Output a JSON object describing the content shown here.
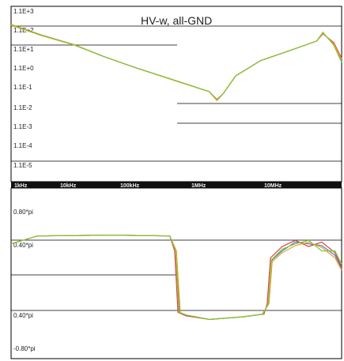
{
  "chart_data": [
    {
      "type": "line",
      "title": "HV-w, all-GND",
      "y_scale": "log",
      "ytick_labels": [
        "1.1E+3",
        "1.1E+2",
        "1.1E+1",
        "1.1E+0",
        "1.1E-1",
        "1.1E-2",
        "1.1E-3",
        "1.1E-4",
        "1.1E-5"
      ],
      "xtick_labels": [
        "1kHz",
        "10kHz",
        "100kHz",
        "1MHz",
        "10MHz"
      ],
      "ylim": [
        1.1e-05,
        1100
      ],
      "x_scale": "log",
      "xlim": [
        1000,
        200000000
      ],
      "grid": "partial",
      "colors": [
        "#3a7bd5",
        "#e23b3b",
        "#f0a020",
        "#7ec83a"
      ],
      "series": [
        {
          "values": [
            [
              1000,
              200
            ],
            [
              3000,
              60
            ],
            [
              10000,
              20
            ],
            [
              30000,
              5
            ],
            [
              100000,
              1.3
            ],
            [
              500000,
              0.25
            ],
            [
              1500000,
              0.08
            ],
            [
              2000000,
              0.03
            ],
            [
              2500000,
              0.06
            ],
            [
              4000000,
              0.5
            ],
            [
              10000000,
              3
            ],
            [
              30000000,
              10
            ],
            [
              80000000,
              30
            ],
            [
              100000000,
              80
            ],
            [
              150000000,
              20
            ],
            [
              200000000,
              3
            ]
          ]
        },
        {
          "values": [
            [
              1000,
              210
            ],
            [
              3000,
              62
            ],
            [
              10000,
              20
            ],
            [
              30000,
              5
            ],
            [
              100000,
              1.3
            ],
            [
              500000,
              0.25
            ],
            [
              1500000,
              0.08
            ],
            [
              2000000,
              0.032
            ],
            [
              2500000,
              0.06
            ],
            [
              4000000,
              0.5
            ],
            [
              10000000,
              3
            ],
            [
              30000000,
              10
            ],
            [
              80000000,
              30
            ],
            [
              100000000,
              70
            ],
            [
              150000000,
              25
            ],
            [
              200000000,
              4
            ]
          ]
        },
        {
          "values": [
            [
              1000,
              190
            ],
            [
              3000,
              58
            ],
            [
              10000,
              19
            ],
            [
              30000,
              5
            ],
            [
              100000,
              1.3
            ],
            [
              500000,
              0.24
            ],
            [
              1500000,
              0.08
            ],
            [
              2000000,
              0.028
            ],
            [
              2500000,
              0.06
            ],
            [
              4000000,
              0.5
            ],
            [
              10000000,
              3
            ],
            [
              30000000,
              10
            ],
            [
              80000000,
              30
            ],
            [
              100000000,
              75
            ],
            [
              150000000,
              22
            ],
            [
              200000000,
              3.5
            ]
          ]
        },
        {
          "values": [
            [
              1000,
              205
            ],
            [
              3000,
              60
            ],
            [
              10000,
              20
            ],
            [
              30000,
              5
            ],
            [
              100000,
              1.3
            ],
            [
              500000,
              0.25
            ],
            [
              1500000,
              0.08
            ],
            [
              2000000,
              0.03
            ],
            [
              2500000,
              0.06
            ],
            [
              4000000,
              0.5
            ],
            [
              10000000,
              3
            ],
            [
              30000000,
              10
            ],
            [
              80000000,
              30
            ],
            [
              100000000,
              85
            ],
            [
              150000000,
              18
            ],
            [
              200000000,
              2.5
            ]
          ]
        }
      ]
    },
    {
      "type": "line",
      "ytick_labels": [
        "0.80*pi",
        "0.40*pi",
        "0.40*pi",
        "-0.80*pi"
      ],
      "ylim_note": "phase",
      "colors": [
        "#3a7bd5",
        "#e23b3b",
        "#f0a020",
        "#7ec83a"
      ],
      "series": [
        {
          "values": [
            [
              0,
              0.38
            ],
            [
              0.08,
              0.47
            ],
            [
              0.3,
              0.48
            ],
            [
              0.48,
              0.47
            ],
            [
              0.5,
              0.3
            ],
            [
              0.51,
              -0.4
            ],
            [
              0.53,
              -0.43
            ],
            [
              0.6,
              -0.48
            ],
            [
              0.7,
              -0.45
            ],
            [
              0.76,
              -0.42
            ],
            [
              0.78,
              -0.3
            ],
            [
              0.79,
              0.2
            ],
            [
              0.82,
              0.3
            ],
            [
              0.86,
              0.4
            ],
            [
              0.9,
              0.38
            ],
            [
              0.94,
              0.36
            ],
            [
              0.98,
              0.25
            ],
            [
              1.0,
              0.1
            ]
          ]
        },
        {
          "values": [
            [
              0,
              0.38
            ],
            [
              0.08,
              0.47
            ],
            [
              0.3,
              0.48
            ],
            [
              0.48,
              0.47
            ],
            [
              0.495,
              0.3
            ],
            [
              0.505,
              -0.4
            ],
            [
              0.53,
              -0.44
            ],
            [
              0.6,
              -0.48
            ],
            [
              0.7,
              -0.45
            ],
            [
              0.765,
              -0.42
            ],
            [
              0.775,
              -0.3
            ],
            [
              0.785,
              0.22
            ],
            [
              0.82,
              0.35
            ],
            [
              0.86,
              0.42
            ],
            [
              0.9,
              0.35
            ],
            [
              0.94,
              0.4
            ],
            [
              0.98,
              0.28
            ],
            [
              1.0,
              0.12
            ]
          ]
        },
        {
          "values": [
            [
              0,
              0.38
            ],
            [
              0.08,
              0.47
            ],
            [
              0.3,
              0.48
            ],
            [
              0.48,
              0.47
            ],
            [
              0.5,
              0.3
            ],
            [
              0.512,
              -0.4
            ],
            [
              0.53,
              -0.43
            ],
            [
              0.6,
              -0.48
            ],
            [
              0.7,
              -0.45
            ],
            [
              0.76,
              -0.42
            ],
            [
              0.78,
              -0.3
            ],
            [
              0.79,
              0.18
            ],
            [
              0.82,
              0.28
            ],
            [
              0.86,
              0.36
            ],
            [
              0.9,
              0.4
            ],
            [
              0.94,
              0.34
            ],
            [
              0.98,
              0.22
            ],
            [
              1.0,
              0.08
            ]
          ]
        },
        {
          "values": [
            [
              0,
              0.38
            ],
            [
              0.08,
              0.47
            ],
            [
              0.3,
              0.48
            ],
            [
              0.48,
              0.47
            ],
            [
              0.498,
              0.3
            ],
            [
              0.508,
              -0.4
            ],
            [
              0.53,
              -0.43
            ],
            [
              0.6,
              -0.48
            ],
            [
              0.7,
              -0.45
            ],
            [
              0.762,
              -0.42
            ],
            [
              0.778,
              -0.3
            ],
            [
              0.788,
              0.2
            ],
            [
              0.82,
              0.32
            ],
            [
              0.86,
              0.38
            ],
            [
              0.9,
              0.42
            ],
            [
              0.94,
              0.3
            ],
            [
              0.98,
              0.3
            ],
            [
              1.0,
              0.15
            ]
          ]
        }
      ]
    }
  ]
}
